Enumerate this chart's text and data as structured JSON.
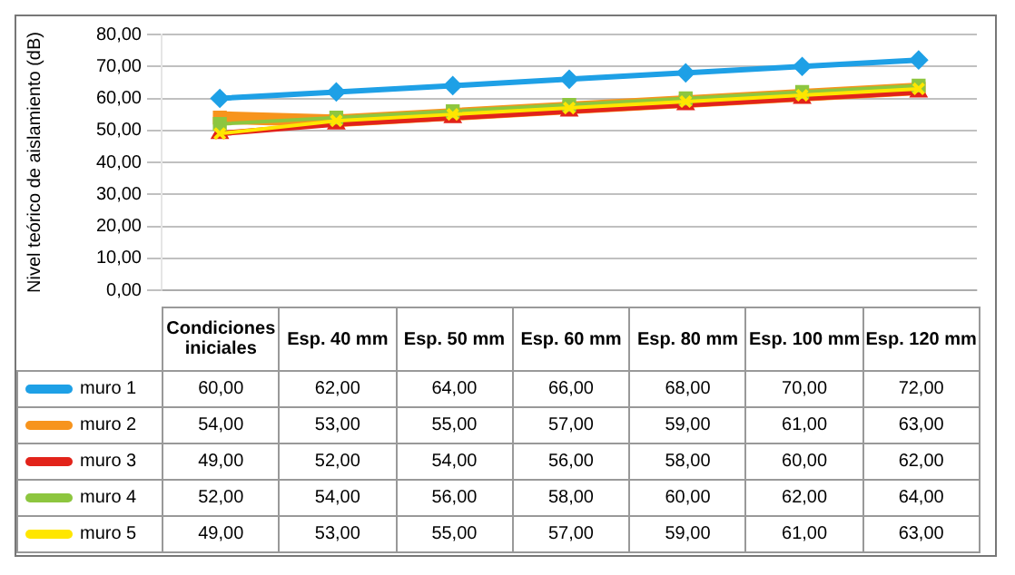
{
  "chart_data": {
    "type": "line",
    "ylabel": "Nivel teórico de aislamiento (dB)",
    "categories": [
      "Condiciones iniciales",
      "Esp. 40 mm",
      "Esp. 50 mm",
      "Esp. 60 mm",
      "Esp. 80 mm",
      "Esp. 100 mm",
      "Esp. 120 mm"
    ],
    "series": [
      {
        "name": "muro 1",
        "color": "#1ea0e6",
        "marker": "diamond",
        "values": [
          60,
          62,
          64,
          66,
          68,
          70,
          72
        ],
        "value_labels": [
          "60,00",
          "62,00",
          "64,00",
          "66,00",
          "68,00",
          "70,00",
          "72,00"
        ]
      },
      {
        "name": "muro 2",
        "color": "#f7941d",
        "marker": "square",
        "values": [
          54,
          53,
          55,
          57,
          59,
          61,
          63
        ],
        "value_labels": [
          "54,00",
          "53,00",
          "55,00",
          "57,00",
          "59,00",
          "61,00",
          "63,00"
        ]
      },
      {
        "name": "muro 3",
        "color": "#e2231a",
        "marker": "triangle",
        "values": [
          49,
          52,
          54,
          56,
          58,
          60,
          62
        ],
        "value_labels": [
          "49,00",
          "52,00",
          "54,00",
          "56,00",
          "58,00",
          "60,00",
          "62,00"
        ]
      },
      {
        "name": "muro 4",
        "color": "#8dc63f",
        "marker": "square",
        "values": [
          52,
          54,
          56,
          58,
          60,
          62,
          64
        ],
        "value_labels": [
          "52,00",
          "54,00",
          "56,00",
          "58,00",
          "60,00",
          "62,00",
          "64,00"
        ]
      },
      {
        "name": "muro 5",
        "color": "#ffe600",
        "marker": "cross",
        "values": [
          49,
          53,
          55,
          57,
          59,
          61,
          63
        ],
        "value_labels": [
          "49,00",
          "53,00",
          "55,00",
          "57,00",
          "59,00",
          "61,00",
          "63,00"
        ]
      }
    ],
    "ylim": [
      0,
      80
    ],
    "yticks": [
      {
        "value": 0,
        "label": "0,00"
      },
      {
        "value": 10,
        "label": "10,00"
      },
      {
        "value": 20,
        "label": "20,00"
      },
      {
        "value": 30,
        "label": "30,00"
      },
      {
        "value": 40,
        "label": "40,00"
      },
      {
        "value": 50,
        "label": "50,00"
      },
      {
        "value": 60,
        "label": "60,00"
      },
      {
        "value": 70,
        "label": "70,00"
      },
      {
        "value": 80,
        "label": "80,00"
      }
    ],
    "grid": "y",
    "legend": "bottom",
    "tick_labels": "y"
  }
}
